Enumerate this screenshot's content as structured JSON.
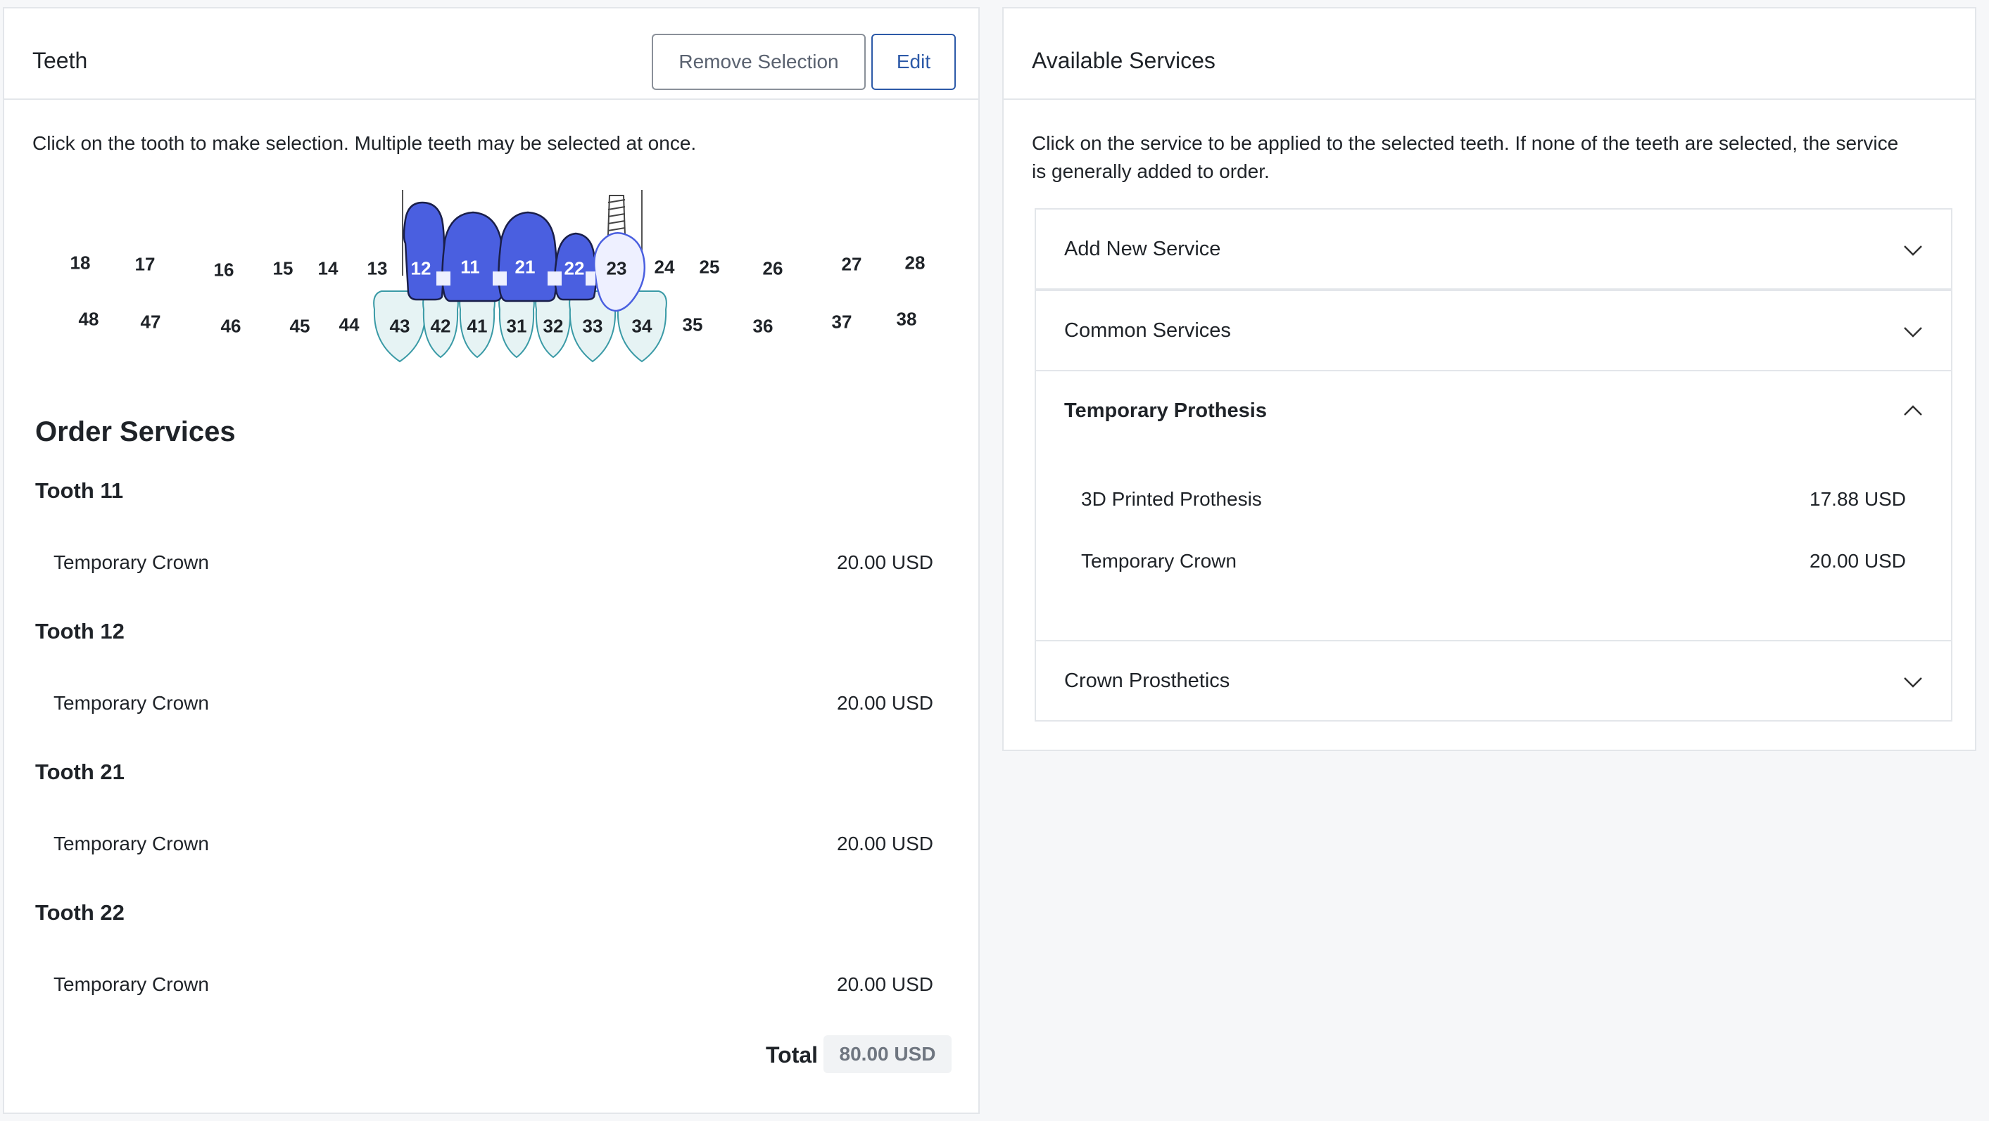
{
  "teeth_panel": {
    "title": "Teeth",
    "remove_selection_label": "Remove Selection",
    "edit_label": "Edit",
    "instructions": "Click on the tooth to make selection. Multiple teeth may be selected at once."
  },
  "chart": {
    "upper_row": [
      "18",
      "17",
      "16",
      "15",
      "14",
      "13",
      "12",
      "11",
      "21",
      "22",
      "23",
      "24",
      "25",
      "26",
      "27",
      "28"
    ],
    "lower_row": [
      "48",
      "47",
      "46",
      "45",
      "44",
      "43",
      "42",
      "41",
      "31",
      "32",
      "33",
      "34",
      "35",
      "36",
      "37",
      "38"
    ],
    "selected": [
      "12",
      "11",
      "21",
      "22"
    ],
    "implants": [
      "12",
      "23"
    ],
    "selected_color": "#4a5fe0",
    "implant_color": "#eef0ff",
    "lower_fill": "#e6f3f4",
    "lower_stroke": "#3a9aa6"
  },
  "order": {
    "title": "Order Services",
    "groups": [
      {
        "tooth": "Tooth 11",
        "service": "Temporary Crown",
        "price": "20.00 USD"
      },
      {
        "tooth": "Tooth 12",
        "service": "Temporary Crown",
        "price": "20.00 USD"
      },
      {
        "tooth": "Tooth 21",
        "service": "Temporary Crown",
        "price": "20.00 USD"
      },
      {
        "tooth": "Tooth 22",
        "service": "Temporary Crown",
        "price": "20.00 USD"
      }
    ],
    "total_label": "Total",
    "total_value": "80.00 USD"
  },
  "services_panel": {
    "title": "Available Services",
    "instructions_line1": "Click on the service to be applied to the selected teeth. If none of the teeth are selected, the service",
    "instructions_line2": "is generally added to order.",
    "accordion": [
      {
        "label": "Add New Service",
        "expanded": false
      },
      {
        "label": "Common Services",
        "expanded": false
      },
      {
        "label": "Temporary Prothesis",
        "expanded": true,
        "items": [
          {
            "name": "3D Printed Prothesis",
            "price": "17.88 USD"
          },
          {
            "name": "Temporary Crown",
            "price": "20.00 USD"
          }
        ]
      },
      {
        "label": "Crown Prosthetics",
        "expanded": false
      }
    ]
  }
}
